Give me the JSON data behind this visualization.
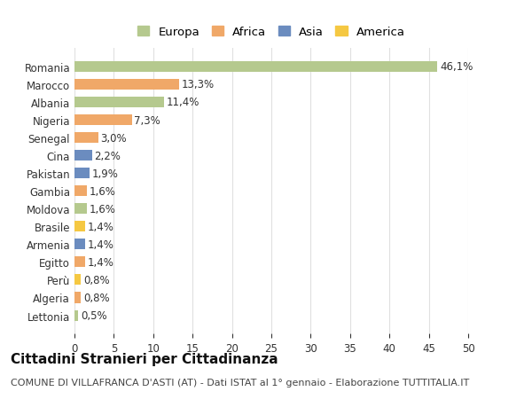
{
  "countries": [
    "Romania",
    "Marocco",
    "Albania",
    "Nigeria",
    "Senegal",
    "Cina",
    "Pakistan",
    "Gambia",
    "Moldova",
    "Brasile",
    "Armenia",
    "Egitto",
    "Perù",
    "Algeria",
    "Lettonia"
  ],
  "values": [
    46.1,
    13.3,
    11.4,
    7.3,
    3.0,
    2.2,
    1.9,
    1.6,
    1.6,
    1.4,
    1.4,
    1.4,
    0.8,
    0.8,
    0.5
  ],
  "labels": [
    "46,1%",
    "13,3%",
    "11,4%",
    "7,3%",
    "3,0%",
    "2,2%",
    "1,9%",
    "1,6%",
    "1,6%",
    "1,4%",
    "1,4%",
    "1,4%",
    "0,8%",
    "0,8%",
    "0,5%"
  ],
  "continents": [
    "Europa",
    "Africa",
    "Europa",
    "Africa",
    "Africa",
    "Asia",
    "Asia",
    "Africa",
    "Europa",
    "America",
    "Asia",
    "Africa",
    "America",
    "Africa",
    "Europa"
  ],
  "continent_colors": {
    "Europa": "#b5c98e",
    "Africa": "#f0a868",
    "Asia": "#6b8cbf",
    "America": "#f5c842"
  },
  "legend_order": [
    "Europa",
    "Africa",
    "Asia",
    "America"
  ],
  "title": "Cittadini Stranieri per Cittadinanza",
  "subtitle": "COMUNE DI VILLAFRANCA D'ASTI (AT) - Dati ISTAT al 1° gennaio - Elaborazione TUTTITALIA.IT",
  "xlim": [
    0,
    50
  ],
  "xticks": [
    0,
    5,
    10,
    15,
    20,
    25,
    30,
    35,
    40,
    45,
    50
  ],
  "background_color": "#ffffff",
  "grid_color": "#e0e0e0",
  "bar_height": 0.6,
  "label_fontsize": 8.5,
  "tick_fontsize": 8.5,
  "title_fontsize": 11,
  "subtitle_fontsize": 8
}
